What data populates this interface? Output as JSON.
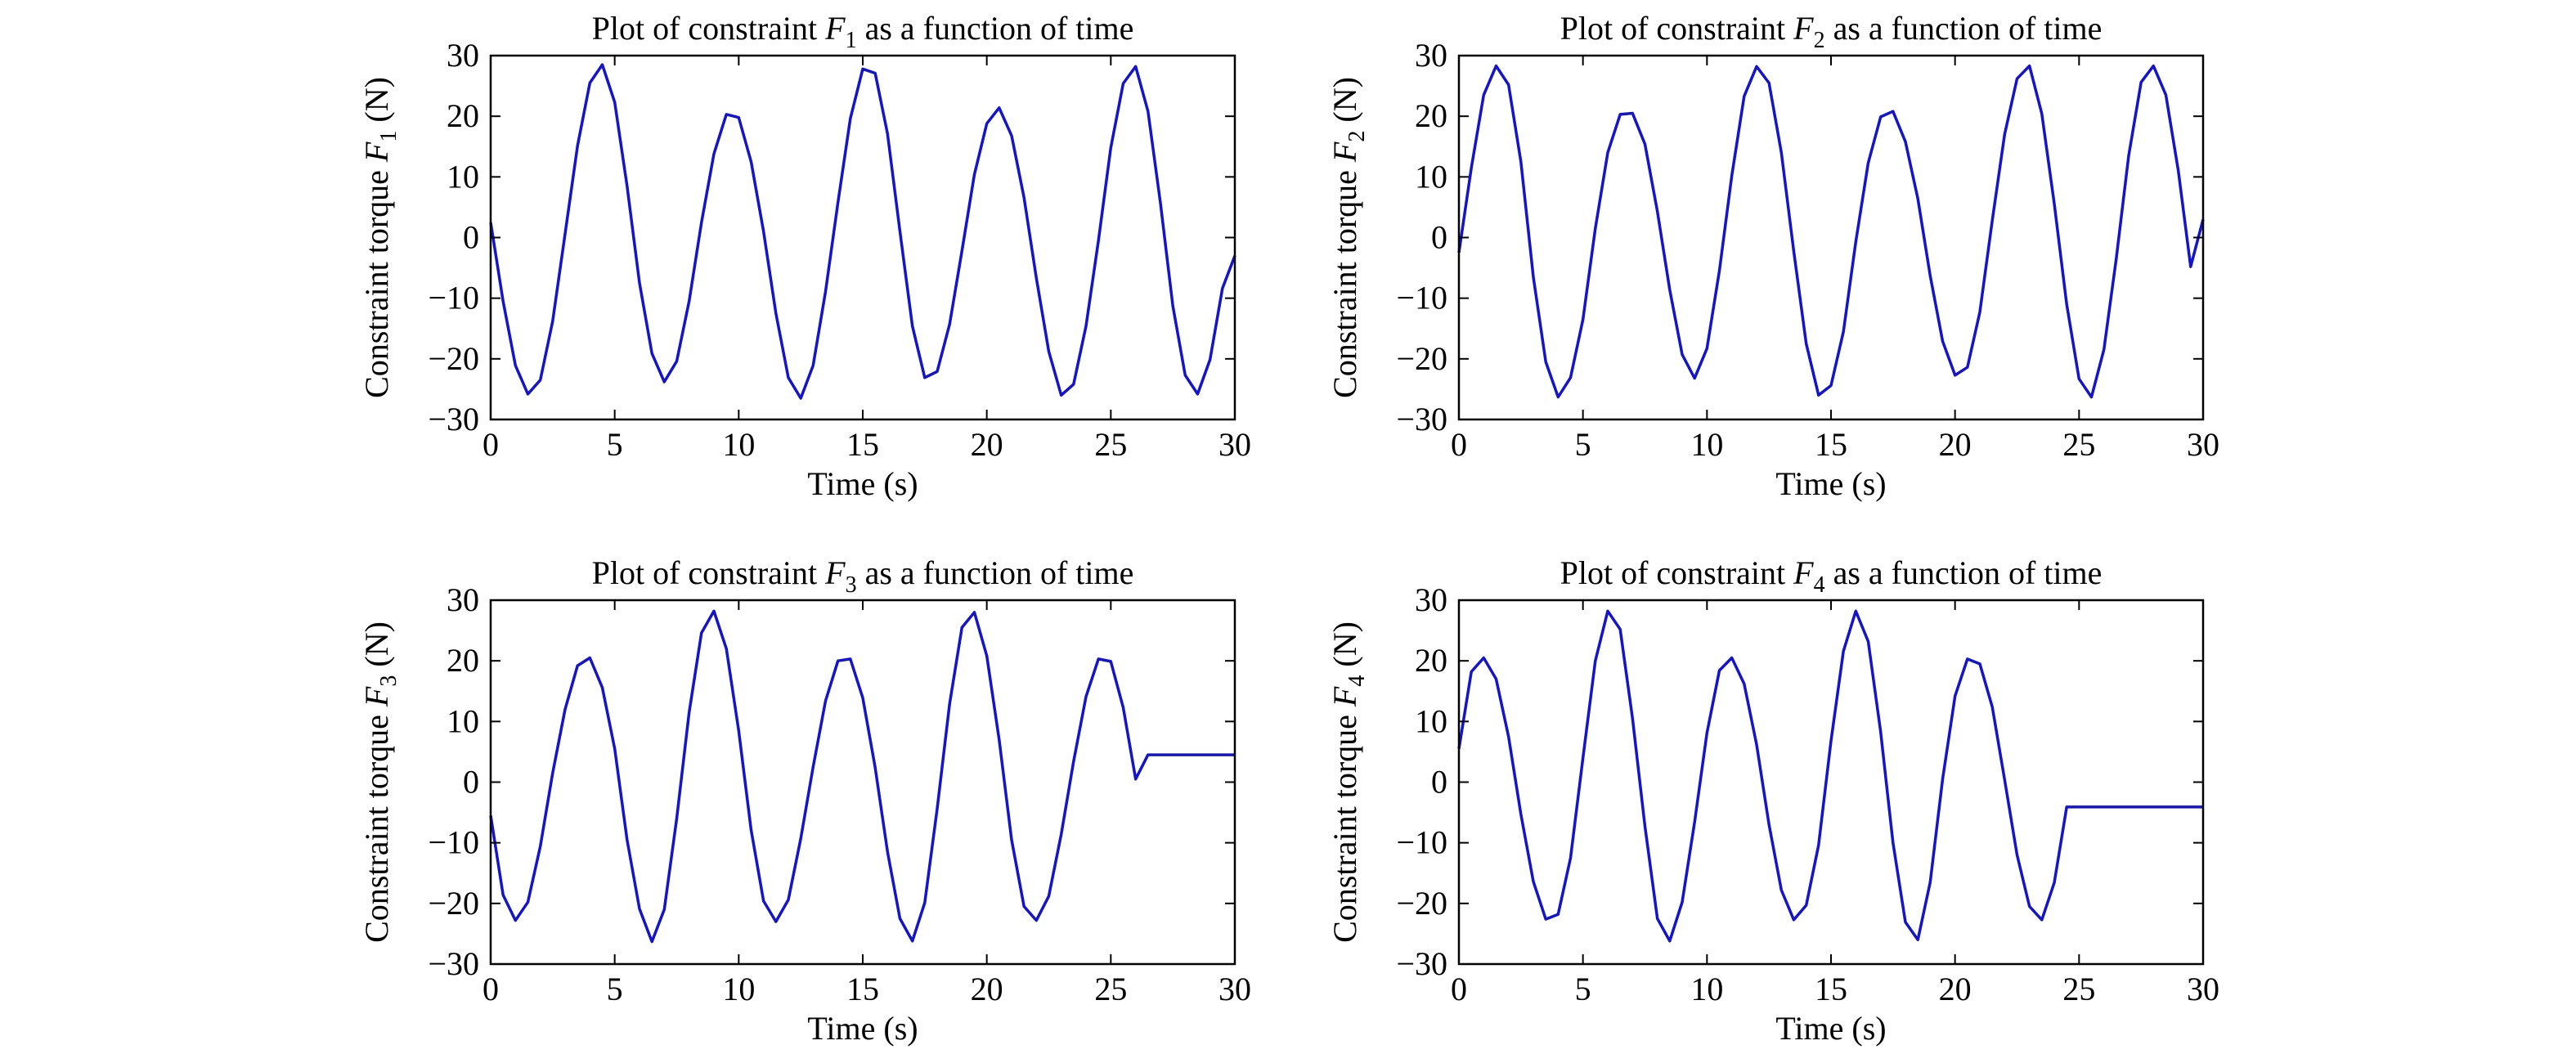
{
  "styles": {
    "line_color": "#1414c8",
    "axis_color": "#000000",
    "background": "#ffffff"
  },
  "chart_data": [
    {
      "type": "line",
      "title": {
        "prefix": "Plot of constraint ",
        "var": "F",
        "sub": "1",
        "suffix": " as a function of time"
      },
      "xlabel": "Time (s)",
      "ylabel": {
        "prefix": "Constraint torque ",
        "var": "F",
        "sub": "1",
        "suffix": " (N)"
      },
      "xlim": [
        0,
        30
      ],
      "ylim": [
        -30,
        30
      ],
      "xticks": [
        0,
        5,
        10,
        15,
        20,
        25,
        30
      ],
      "yticks": [
        -30,
        -20,
        -10,
        0,
        10,
        20,
        30
      ],
      "grid": false,
      "series": [
        {
          "x": [
            0,
            0.5,
            1,
            1.5,
            2,
            2.5,
            3,
            3.5,
            4,
            4.5,
            5,
            5.5,
            6,
            6.5,
            7,
            7.5,
            8,
            8.5,
            9,
            9.5,
            10,
            10.5,
            11,
            11.5,
            12,
            12.5,
            13,
            13.5,
            14,
            14.5,
            15,
            15.5,
            16,
            16.5,
            17,
            17.5,
            18,
            18.5,
            19,
            19.5,
            20,
            20.5,
            21,
            21.5,
            22,
            22.5,
            23,
            23.5,
            24,
            24.5,
            25,
            25.5,
            26,
            26.5,
            27,
            27.5,
            28,
            28.5,
            29,
            29.5,
            30
          ],
          "y": [
            2.5,
            -10.5,
            -21.1,
            -25.8,
            -23.5,
            -13.8,
            0.6,
            15.1,
            25.5,
            28.5,
            22.3,
            8.5,
            -7.5,
            -19.1,
            -23.8,
            -20.4,
            -10.5,
            2.5,
            13.8,
            20.3,
            19.8,
            12.5,
            1.0,
            -12.5,
            -23.1,
            -26.5,
            -21.1,
            -8.9,
            5.8,
            19.6,
            27.8,
            27.1,
            17.1,
            1.0,
            -14.6,
            -23.1,
            -22.1,
            -14.3,
            -2.2,
            10.4,
            18.8,
            21.4,
            16.8,
            6.6,
            -6.7,
            -18.8,
            -26.0,
            -24.2,
            -14.6,
            -0.5,
            14.8,
            25.4,
            28.2,
            20.8,
            5.7,
            -11.3,
            -22.7,
            -25.8,
            -20.1,
            -8.4,
            -3.0
          ]
        }
      ]
    },
    {
      "type": "line",
      "title": {
        "prefix": "Plot of constraint ",
        "var": "F",
        "sub": "2",
        "suffix": " as a function of time"
      },
      "xlabel": "Time (s)",
      "ylabel": {
        "prefix": "Constraint torque ",
        "var": "F",
        "sub": "2",
        "suffix": " (N)"
      },
      "xlim": [
        0,
        30
      ],
      "ylim": [
        -30,
        30
      ],
      "xticks": [
        0,
        5,
        10,
        15,
        20,
        25,
        30
      ],
      "yticks": [
        -30,
        -20,
        -10,
        0,
        10,
        20,
        30
      ],
      "grid": false,
      "series": [
        {
          "x": [
            0,
            0.5,
            1,
            1.5,
            2,
            2.5,
            3,
            3.5,
            4,
            4.5,
            5,
            5.5,
            6,
            6.5,
            7,
            7.5,
            8,
            8.5,
            9,
            9.5,
            10,
            10.5,
            11,
            11.5,
            12,
            12.5,
            13,
            13.5,
            14,
            14.5,
            15,
            15.5,
            16,
            16.5,
            17,
            17.5,
            18,
            18.5,
            19,
            19.5,
            20,
            20.5,
            21,
            21.5,
            22,
            22.5,
            23,
            23.5,
            24,
            24.5,
            25,
            25.5,
            26,
            26.5,
            27,
            27.5,
            28,
            28.5,
            29,
            29.5,
            30
          ],
          "y": [
            -2.5,
            11.5,
            23.5,
            28.3,
            25.2,
            12.5,
            -6.5,
            -20.5,
            -26.3,
            -23.1,
            -13.5,
            1.5,
            14.0,
            20.3,
            20.5,
            15.4,
            4.3,
            -8.6,
            -19.3,
            -23.2,
            -18.3,
            -5.5,
            10.2,
            23.3,
            28.2,
            25.5,
            14.0,
            -2.3,
            -17.5,
            -26.0,
            -24.4,
            -15.5,
            -0.7,
            12.3,
            19.9,
            20.8,
            15.8,
            6.4,
            -6.3,
            -17.1,
            -22.7,
            -21.4,
            -12.3,
            2.8,
            17.0,
            26.2,
            28.3,
            20.4,
            5.6,
            -11.0,
            -23.3,
            -26.3,
            -18.5,
            -3.5,
            13.5,
            25.6,
            28.3,
            23.5,
            11.0,
            -4.8,
            3.0
          ]
        }
      ]
    },
    {
      "type": "line",
      "title": {
        "prefix": "Plot of constraint ",
        "var": "F",
        "sub": "3",
        "suffix": " as a function of time"
      },
      "xlabel": "Time (s)",
      "ylabel": {
        "prefix": "Constraint torque ",
        "var": "F",
        "sub": "3",
        "suffix": " (N)"
      },
      "xlim": [
        0,
        30
      ],
      "ylim": [
        -30,
        30
      ],
      "xticks": [
        0,
        5,
        10,
        15,
        20,
        25,
        30
      ],
      "yticks": [
        -30,
        -20,
        -10,
        0,
        10,
        20,
        30
      ],
      "grid": false,
      "series": [
        {
          "x": [
            0,
            0.5,
            1,
            1.5,
            2,
            2.5,
            3,
            3.5,
            4,
            4.5,
            5,
            5.5,
            6,
            6.5,
            7,
            7.5,
            8,
            8.5,
            9,
            9.5,
            10,
            10.5,
            11,
            11.5,
            12,
            12.5,
            13,
            13.5,
            14,
            14.5,
            15,
            15.5,
            16,
            16.5,
            17,
            17.5,
            18,
            18.5,
            19,
            19.5,
            20,
            20.5,
            21,
            21.5,
            22,
            22.5,
            23,
            23.5,
            24,
            24.5,
            25,
            25.5,
            26,
            26.5,
            27,
            27.5,
            28,
            28.5,
            29,
            29.5,
            30
          ],
          "y": [
            -5.5,
            -18.6,
            -22.8,
            -19.8,
            -10.6,
            1.5,
            12.0,
            19.2,
            20.5,
            15.6,
            5.5,
            -9.5,
            -20.9,
            -26.3,
            -21.0,
            -6.0,
            11.5,
            24.6,
            28.2,
            22.0,
            8.5,
            -7.9,
            -19.6,
            -23.0,
            -19.4,
            -9.3,
            2.5,
            13.4,
            20.0,
            20.3,
            13.9,
            2.4,
            -11.5,
            -22.5,
            -26.2,
            -19.9,
            -4.4,
            12.9,
            25.5,
            28.0,
            20.8,
            7.0,
            -9.5,
            -20.5,
            -22.8,
            -18.8,
            -8.6,
            3.4,
            14.1,
            20.3,
            19.9,
            12.3,
            0.5,
            4.5,
            4.5,
            4.5,
            4.5,
            4.5,
            4.5,
            4.5,
            4.5
          ]
        }
      ]
    },
    {
      "type": "line",
      "title": {
        "prefix": "Plot of constraint ",
        "var": "F",
        "sub": "4",
        "suffix": " as a function of time"
      },
      "xlabel": "Time (s)",
      "ylabel": {
        "prefix": "Constraint torque ",
        "var": "F",
        "sub": "4",
        "suffix": " (N)"
      },
      "xlim": [
        0,
        30
      ],
      "ylim": [
        -30,
        30
      ],
      "xticks": [
        0,
        5,
        10,
        15,
        20,
        25,
        30
      ],
      "yticks": [
        -30,
        -20,
        -10,
        0,
        10,
        20,
        30
      ],
      "grid": false,
      "series": [
        {
          "x": [
            0,
            0.5,
            1,
            1.5,
            2,
            2.5,
            3,
            3.5,
            4,
            4.5,
            5,
            5.5,
            6,
            6.5,
            7,
            7.5,
            8,
            8.5,
            9,
            9.5,
            10,
            10.5,
            11,
            11.5,
            12,
            12.5,
            13,
            13.5,
            14,
            14.5,
            15,
            15.5,
            16,
            16.5,
            17,
            17.5,
            18,
            18.5,
            19,
            19.5,
            20,
            20.5,
            21,
            21.5,
            22,
            22.5,
            23,
            23.5,
            24,
            24.5,
            25,
            25.5,
            26,
            26.5,
            27,
            27.5,
            28,
            28.5,
            29,
            29.5,
            30
          ],
          "y": [
            5.5,
            18.2,
            20.5,
            17.0,
            7.5,
            -5.3,
            -16.4,
            -22.6,
            -21.8,
            -12.5,
            4.0,
            20.0,
            28.2,
            25.2,
            10.5,
            -7.3,
            -22.5,
            -26.2,
            -19.8,
            -6.6,
            8.1,
            18.4,
            20.5,
            16.2,
            6.2,
            -7.0,
            -17.8,
            -22.7,
            -20.3,
            -10.4,
            6.8,
            21.6,
            28.2,
            23.2,
            8.3,
            -10.0,
            -23.1,
            -26.0,
            -16.5,
            0.5,
            14.2,
            20.3,
            19.5,
            12.4,
            0.4,
            -12.0,
            -20.5,
            -22.7,
            -16.6,
            -4.1,
            -4.1,
            -4.1,
            -4.1,
            -4.1,
            -4.1,
            -4.1,
            -4.1,
            -4.1,
            -4.1,
            -4.1,
            -4.1
          ]
        }
      ]
    }
  ]
}
